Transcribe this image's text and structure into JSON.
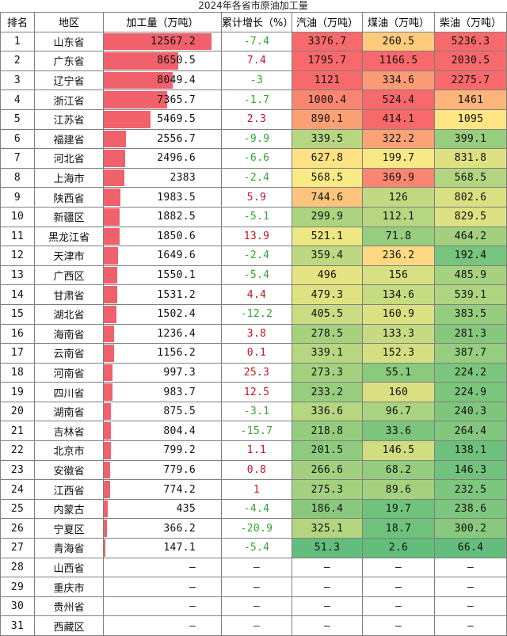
{
  "title": "2024年各省市原油加工量",
  "headers": [
    "排名",
    "地区",
    "加工量（万吨）",
    "累计增长（%）",
    "汽油（万吨）",
    "煤油（万吨）",
    "柴油（万吨）"
  ],
  "rows": [
    {
      "rank": "1",
      "region": "山东省",
      "processing": "12567.2",
      "growth": "-7.4",
      "gasoline": "3376.7",
      "kerosene": "260.5",
      "diesel": "5236.3"
    },
    {
      "rank": "2",
      "region": "广东省",
      "processing": "8650.5",
      "growth": "7.4",
      "gasoline": "1795.7",
      "kerosene": "1166.5",
      "diesel": "2030.5"
    },
    {
      "rank": "3",
      "region": "辽宁省",
      "processing": "8049.4",
      "growth": "-3",
      "gasoline": "1121",
      "kerosene": "334.6",
      "diesel": "2275.7"
    },
    {
      "rank": "4",
      "region": "浙江省",
      "processing": "7365.7",
      "growth": "-1.7",
      "gasoline": "1000.4",
      "kerosene": "524.4",
      "diesel": "1461"
    },
    {
      "rank": "5",
      "region": "江苏省",
      "processing": "5469.5",
      "growth": "2.3",
      "gasoline": "890.1",
      "kerosene": "414.1",
      "diesel": "1095"
    },
    {
      "rank": "6",
      "region": "福建省",
      "processing": "2556.7",
      "growth": "-9.9",
      "gasoline": "339.5",
      "kerosene": "322.2",
      "diesel": "399.1"
    },
    {
      "rank": "7",
      "region": "河北省",
      "processing": "2496.6",
      "growth": "-6.6",
      "gasoline": "627.8",
      "kerosene": "199.7",
      "diesel": "831.8"
    },
    {
      "rank": "8",
      "region": "上海市",
      "processing": "2383",
      "growth": "-2.4",
      "gasoline": "568.5",
      "kerosene": "369.9",
      "diesel": "568.5"
    },
    {
      "rank": "9",
      "region": "陕西省",
      "processing": "1983.5",
      "growth": "5.9",
      "gasoline": "744.6",
      "kerosene": "126",
      "diesel": "802.6"
    },
    {
      "rank": "10",
      "region": "新疆区",
      "processing": "1882.5",
      "growth": "-5.1",
      "gasoline": "299.9",
      "kerosene": "112.1",
      "diesel": "829.5"
    },
    {
      "rank": "11",
      "region": "黑龙江省",
      "processing": "1850.6",
      "growth": "13.9",
      "gasoline": "521.1",
      "kerosene": "71.8",
      "diesel": "464.2"
    },
    {
      "rank": "12",
      "region": "天津市",
      "processing": "1649.6",
      "growth": "-2.4",
      "gasoline": "359.4",
      "kerosene": "236.2",
      "diesel": "192.4"
    },
    {
      "rank": "13",
      "region": "广西区",
      "processing": "1550.1",
      "growth": "-5.4",
      "gasoline": "496",
      "kerosene": "156",
      "diesel": "485.9"
    },
    {
      "rank": "14",
      "region": "甘肃省",
      "processing": "1531.2",
      "growth": "4.4",
      "gasoline": "479.3",
      "kerosene": "134.6",
      "diesel": "539.1"
    },
    {
      "rank": "15",
      "region": "湖北省",
      "processing": "1502.4",
      "growth": "-12.2",
      "gasoline": "405.5",
      "kerosene": "160.9",
      "diesel": "383.5"
    },
    {
      "rank": "16",
      "region": "海南省",
      "processing": "1236.4",
      "growth": "3.8",
      "gasoline": "278.5",
      "kerosene": "133.3",
      "diesel": "281.3"
    },
    {
      "rank": "17",
      "region": "云南省",
      "processing": "1156.2",
      "growth": "0.1",
      "gasoline": "339.1",
      "kerosene": "152.3",
      "diesel": "387.7"
    },
    {
      "rank": "18",
      "region": "河南省",
      "processing": "997.3",
      "growth": "25.3",
      "gasoline": "273.3",
      "kerosene": "55.1",
      "diesel": "224.2"
    },
    {
      "rank": "19",
      "region": "四川省",
      "processing": "983.7",
      "growth": "12.5",
      "gasoline": "233.2",
      "kerosene": "160",
      "diesel": "224.9"
    },
    {
      "rank": "20",
      "region": "湖南省",
      "processing": "875.5",
      "growth": "-3.1",
      "gasoline": "336.6",
      "kerosene": "96.7",
      "diesel": "240.3"
    },
    {
      "rank": "21",
      "region": "吉林省",
      "processing": "804.4",
      "growth": "-15.7",
      "gasoline": "218.8",
      "kerosene": "33.6",
      "diesel": "264.4"
    },
    {
      "rank": "22",
      "region": "北京市",
      "processing": "799.2",
      "growth": "1.1",
      "gasoline": "201.5",
      "kerosene": "146.5",
      "diesel": "138.1"
    },
    {
      "rank": "23",
      "region": "安徽省",
      "processing": "779.6",
      "growth": "0.8",
      "gasoline": "266.6",
      "kerosene": "68.2",
      "diesel": "146.3"
    },
    {
      "rank": "24",
      "region": "江西省",
      "processing": "774.2",
      "growth": "1",
      "gasoline": "275.3",
      "kerosene": "89.6",
      "diesel": "232.5"
    },
    {
      "rank": "25",
      "region": "内蒙古",
      "processing": "435",
      "growth": "-4.4",
      "gasoline": "186.4",
      "kerosene": "19.7",
      "diesel": "238.6"
    },
    {
      "rank": "26",
      "region": "宁夏区",
      "processing": "366.2",
      "growth": "-20.9",
      "gasoline": "325.1",
      "kerosene": "18.7",
      "diesel": "300.2"
    },
    {
      "rank": "27",
      "region": "青海省",
      "processing": "147.1",
      "growth": "-5.4",
      "gasoline": "51.3",
      "kerosene": "2.6",
      "diesel": "66.4"
    },
    {
      "rank": "28",
      "region": "山西省",
      "processing": "–",
      "growth": "–",
      "gasoline": "–",
      "kerosene": "–",
      "diesel": "–"
    },
    {
      "rank": "29",
      "region": "重庆市",
      "processing": "–",
      "growth": "–",
      "gasoline": "–",
      "kerosene": "–",
      "diesel": "–"
    },
    {
      "rank": "30",
      "region": "贵州省",
      "processing": "–",
      "growth": "–",
      "gasoline": "–",
      "kerosene": "–",
      "diesel": "–"
    },
    {
      "rank": "31",
      "region": "西藏区",
      "processing": "–",
      "growth": "–",
      "gasoline": "–",
      "kerosene": "–",
      "diesel": "–"
    }
  ],
  "colors": {
    "bar": "#f0616b",
    "negative_growth": "#33a532",
    "positive_growth": "#c0171e",
    "scale_low": "#63be7b",
    "scale_mid": "#ffeb84",
    "scale_high": "#f8696b"
  }
}
